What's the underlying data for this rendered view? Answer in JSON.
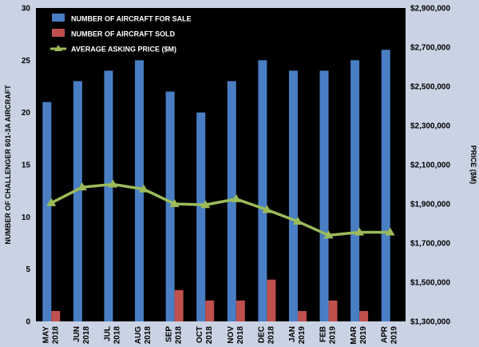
{
  "chart_data": {
    "type": "bar",
    "categories": [
      [
        "MAY",
        "2018"
      ],
      [
        "JUN",
        "2018"
      ],
      [
        "JUL",
        "2018"
      ],
      [
        "AUG",
        "2018"
      ],
      [
        "SEP",
        "2018"
      ],
      [
        "OCT",
        "2018"
      ],
      [
        "NOV",
        "2018"
      ],
      [
        "DEC",
        "2018"
      ],
      [
        "JAN",
        "2019"
      ],
      [
        "FEB",
        "2019"
      ],
      [
        "MAR",
        "2019"
      ],
      [
        "APR",
        "2019"
      ]
    ],
    "series": [
      {
        "name": "NUMBER OF AIRCRAFT FOR SALE",
        "kind": "bar",
        "axis": "left",
        "color": "#4a7ec4",
        "values": [
          21,
          23,
          24,
          25,
          22,
          20,
          23,
          25,
          24,
          24,
          25,
          26
        ]
      },
      {
        "name": "NUMBER OF AIRCRAFT SOLD",
        "kind": "bar",
        "axis": "left",
        "color": "#c0504d",
        "values": [
          1,
          0,
          0,
          0,
          3,
          2,
          2,
          4,
          1,
          2,
          1,
          0
        ]
      },
      {
        "name": "AVERAGE ASKING PRICE ($M)",
        "kind": "line",
        "axis": "right",
        "color": "#9bbb59",
        "values": [
          1905000,
          1985000,
          2000000,
          1975000,
          1900000,
          1895000,
          1925000,
          1870000,
          1810000,
          1740000,
          1755000,
          1755000
        ]
      }
    ],
    "ylabel": "NUMBER OF CHALLENGER 601-3A  AIRCRAFT",
    "y2label": "PRICE ($M)",
    "ylim": [
      0,
      30
    ],
    "yticks": [
      "0",
      "5",
      "10",
      "15",
      "20",
      "25",
      "30"
    ],
    "y2lim": [
      1300000,
      2900000
    ],
    "y2ticks": [
      "$1,300,000",
      "$1,500,000",
      "$1,700,000",
      "$1,900,000",
      "$2,100,000",
      "$2,300,000",
      "$2,500,000",
      "$2,700,000",
      "$2,900,000"
    ],
    "legend_position": "top-left",
    "plot_background": "#000000",
    "grid": false
  }
}
